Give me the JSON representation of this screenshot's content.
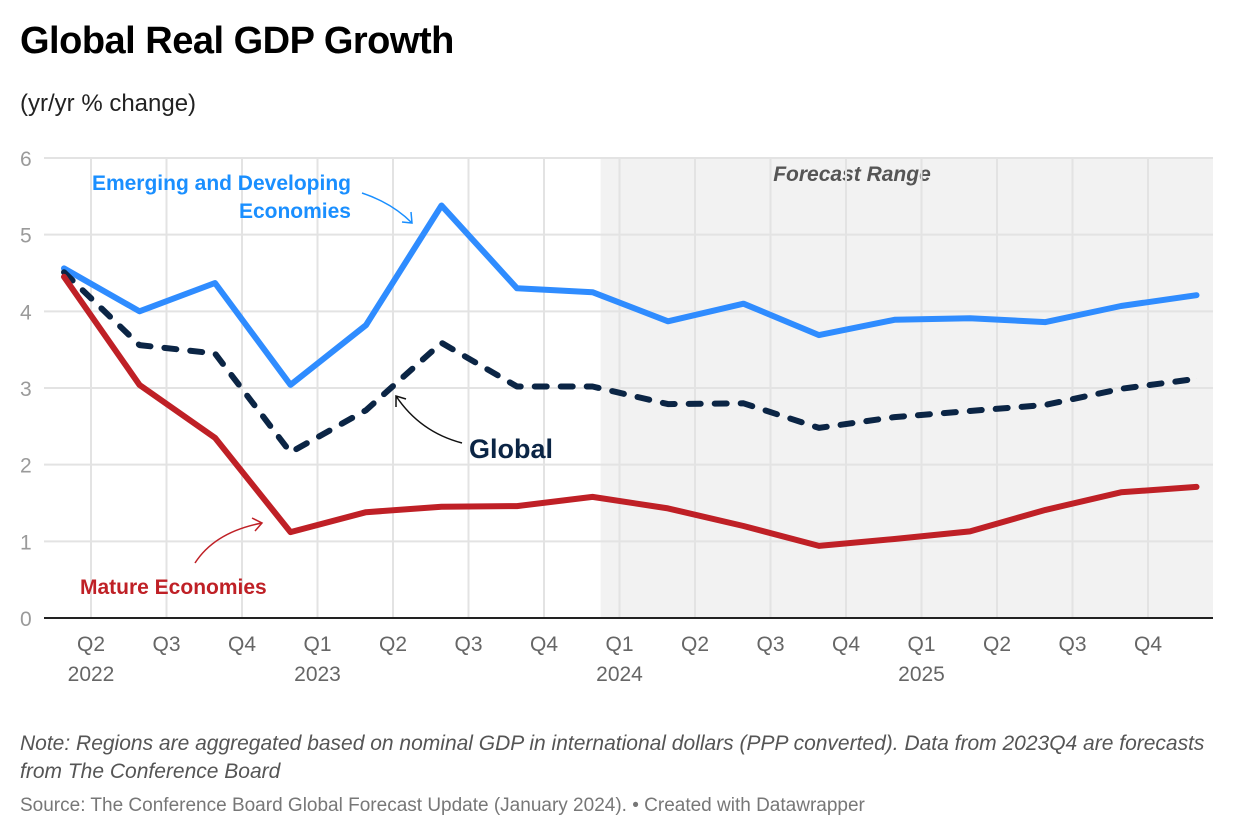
{
  "chart_data": {
    "type": "line",
    "title": "Global Real GDP Growth",
    "subtitle": "(yr/yr % change)",
    "ylim": [
      0,
      6
    ],
    "yticks": [
      "0",
      "1",
      "2",
      "3",
      "4",
      "5",
      "6"
    ],
    "grid": true,
    "x": [
      "2022Q1",
      "2022Q2",
      "2022Q3",
      "2022Q4",
      "2023Q1",
      "2023Q2",
      "2023Q3",
      "2023Q4",
      "2024Q1",
      "2024Q2",
      "2024Q3",
      "2024Q4",
      "2025Q1",
      "2025Q2",
      "2025Q3",
      "2025Q4"
    ],
    "xticks": [
      {
        "q": "Q2",
        "year": "2022"
      },
      {
        "q": "Q3",
        "year": ""
      },
      {
        "q": "Q4",
        "year": ""
      },
      {
        "q": "Q1",
        "year": "2023"
      },
      {
        "q": "Q2",
        "year": ""
      },
      {
        "q": "Q3",
        "year": ""
      },
      {
        "q": "Q4",
        "year": ""
      },
      {
        "q": "Q1",
        "year": "2024"
      },
      {
        "q": "Q2",
        "year": ""
      },
      {
        "q": "Q3",
        "year": ""
      },
      {
        "q": "Q4",
        "year": ""
      },
      {
        "q": "Q1",
        "year": "2025"
      },
      {
        "q": "Q2",
        "year": ""
      },
      {
        "q": "Q3",
        "year": ""
      },
      {
        "q": "Q4",
        "year": ""
      }
    ],
    "series": [
      {
        "name": "Emerging and Developing Economies",
        "label_lines": [
          "Emerging and Developing",
          "Economies"
        ],
        "color": "#2f8cff",
        "label_color": "#1a8fff",
        "dashed": false,
        "values": [
          4.56,
          4.0,
          4.37,
          3.04,
          3.82,
          5.38,
          4.3,
          4.25,
          3.87,
          4.1,
          3.69,
          3.89,
          3.91,
          3.86,
          4.07,
          4.21
        ]
      },
      {
        "name": "Global",
        "label_lines": [
          "Global"
        ],
        "color": "#0b2545",
        "label_color": "#0b2545",
        "dashed": true,
        "values": [
          4.51,
          3.56,
          3.45,
          2.16,
          2.71,
          3.59,
          3.02,
          3.02,
          2.79,
          2.8,
          2.48,
          2.62,
          2.7,
          2.78,
          2.99,
          3.12
        ]
      },
      {
        "name": "Mature Economies",
        "label_lines": [
          "Mature Economies"
        ],
        "color": "#bf2026",
        "label_color": "#bf2026",
        "dashed": false,
        "values": [
          4.45,
          3.04,
          2.35,
          1.12,
          1.38,
          1.45,
          1.46,
          1.58,
          1.43,
          1.2,
          0.94,
          1.03,
          1.13,
          1.41,
          1.64,
          1.71
        ]
      }
    ],
    "forecast_range": {
      "label": "Forecast Range",
      "from_tick_index": 6.75,
      "color": "#f2f2f2"
    }
  },
  "note": "Note: Regions are aggregated based on nominal GDP in international dollars (PPP converted). Data from 2023Q4 are forecasts from The Conference Board",
  "source": "Source: The Conference Board Global Forecast Update (January 2024). • Created with Datawrapper"
}
